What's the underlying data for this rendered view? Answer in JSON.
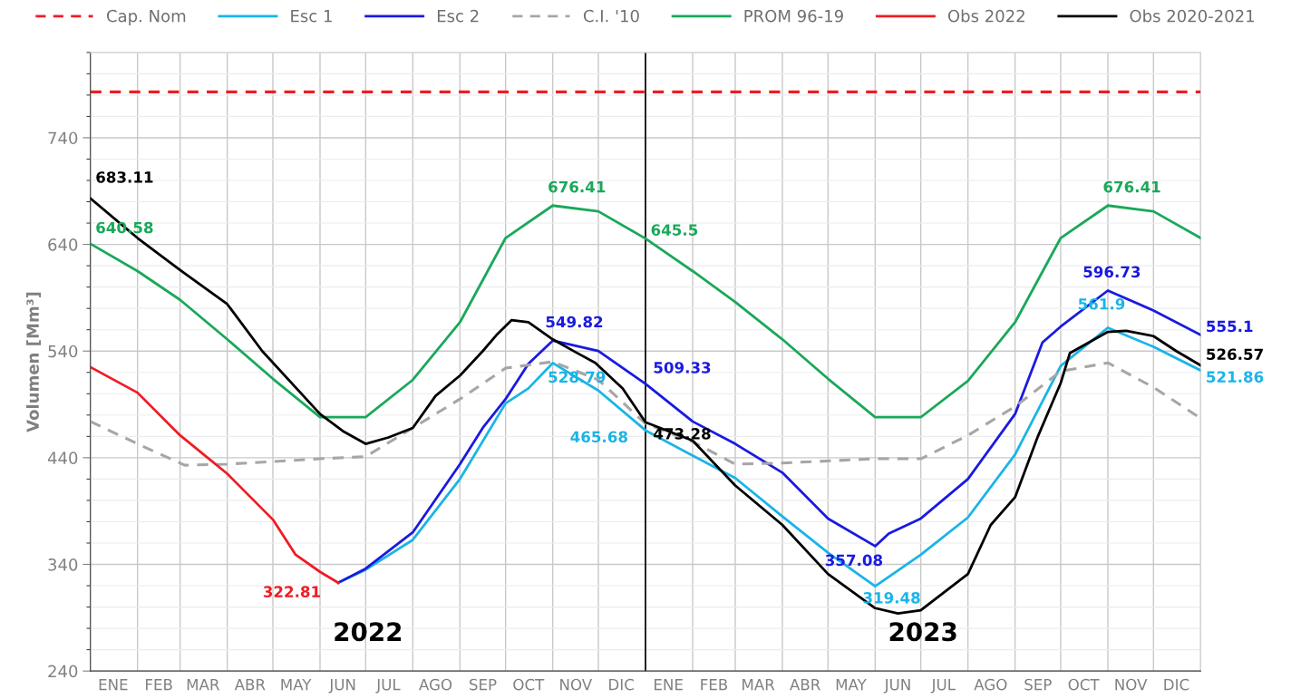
{
  "chart_data": {
    "type": "line",
    "ylabel": "Volumen [Mm³]",
    "xlim": [
      "2022-01-01",
      "2024-01-01"
    ],
    "xticks": [
      {
        "value": "2022-01-16",
        "label": "ENE"
      },
      {
        "value": "2022-02-15",
        "label": "FEB"
      },
      {
        "value": "2022-03-16",
        "label": "MAR"
      },
      {
        "value": "2022-04-16",
        "label": "ABR"
      },
      {
        "value": "2022-05-16",
        "label": "MAY"
      },
      {
        "value": "2022-06-16",
        "label": "JUN"
      },
      {
        "value": "2022-07-16",
        "label": "JUL"
      },
      {
        "value": "2022-08-16",
        "label": "AGO"
      },
      {
        "value": "2022-09-16",
        "label": "SEP"
      },
      {
        "value": "2022-10-16",
        "label": "OCT"
      },
      {
        "value": "2022-11-16",
        "label": "NOV"
      },
      {
        "value": "2022-12-16",
        "label": "DIC"
      },
      {
        "value": "2023-01-16",
        "label": "ENE"
      },
      {
        "value": "2023-02-15",
        "label": "FEB"
      },
      {
        "value": "2023-03-16",
        "label": "MAR"
      },
      {
        "value": "2023-04-16",
        "label": "ABR"
      },
      {
        "value": "2023-05-16",
        "label": "MAY"
      },
      {
        "value": "2023-06-16",
        "label": "JUN"
      },
      {
        "value": "2023-07-16",
        "label": "JUL"
      },
      {
        "value": "2023-08-16",
        "label": "AGO"
      },
      {
        "value": "2023-09-16",
        "label": "SEP"
      },
      {
        "value": "2023-10-16",
        "label": "OCT"
      },
      {
        "value": "2023-11-16",
        "label": "NOV"
      },
      {
        "value": "2023-12-16",
        "label": "DIC"
      }
    ],
    "ylim": [
      240,
      820
    ],
    "yticks": [
      240,
      340,
      440,
      540,
      640,
      740
    ],
    "grid": true,
    "legend": "top",
    "marker": "none",
    "ref_lines": [
      {
        "axis": "x",
        "value": "2023-01-01",
        "color": "#000000"
      }
    ],
    "series": [
      {
        "name": "Cap. Nom",
        "color": "#ee1c25",
        "line_style": "dashed",
        "x": [
          "2022-01-01",
          "2024-01-01"
        ],
        "values": [
          783,
          783
        ]
      },
      {
        "name": "Esc 1",
        "color": "#1ab4e8",
        "line_style": "solid",
        "x": [
          "2022-06-13",
          "2022-07-01",
          "2022-08-01",
          "2022-09-01",
          "2022-10-01",
          "2022-10-16",
          "2022-11-01",
          "2022-12-01",
          "2023-01-01",
          "2023-02-01",
          "2023-03-01",
          "2023-04-01",
          "2023-05-01",
          "2023-06-01",
          "2023-07-01",
          "2023-08-01",
          "2023-09-01",
          "2023-10-01",
          "2023-11-01",
          "2023-12-01",
          "2024-01-01"
        ],
        "values": [
          322.81,
          335,
          363,
          420,
          491,
          505,
          528.79,
          503,
          465.68,
          442,
          421,
          385,
          351,
          319.48,
          349,
          384,
          443,
          526,
          561.9,
          544,
          521.86
        ]
      },
      {
        "name": "Esc 2",
        "color": "#1a1ae0",
        "line_style": "solid",
        "x": [
          "2022-06-13",
          "2022-07-01",
          "2022-08-01",
          "2022-09-01",
          "2022-09-16",
          "2022-10-01",
          "2022-10-16",
          "2022-11-01",
          "2022-12-01",
          "2023-01-01",
          "2023-02-01",
          "2023-03-01",
          "2023-04-01",
          "2023-05-01",
          "2023-06-01",
          "2023-06-10",
          "2023-07-01",
          "2023-08-01",
          "2023-09-01",
          "2023-09-19",
          "2023-10-01",
          "2023-11-01",
          "2023-12-01",
          "2024-01-01"
        ],
        "values": [
          322.81,
          336,
          370,
          434,
          468,
          495,
          528,
          549.82,
          540,
          509.33,
          474,
          453,
          426,
          383,
          357.08,
          369,
          383,
          420,
          481,
          548,
          563,
          596.73,
          578,
          555.1
        ]
      },
      {
        "name": "C.I. '10",
        "color": "#a6a6a6",
        "line_style": "dashed",
        "x": [
          "2022-01-01",
          "2022-02-01",
          "2022-03-04",
          "2022-04-01",
          "2022-06-01",
          "2022-07-01",
          "2022-08-01",
          "2022-09-01",
          "2022-10-01",
          "2022-11-01",
          "2022-12-01",
          "2023-01-01",
          "2023-02-01",
          "2023-03-01",
          "2023-04-01",
          "2023-06-01",
          "2023-07-01",
          "2023-08-01",
          "2023-09-01",
          "2023-10-01",
          "2023-11-01",
          "2023-12-01",
          "2024-01-01"
        ],
        "values": [
          474,
          453,
          433,
          434,
          439,
          441,
          468,
          495,
          524,
          530,
          513,
          472,
          455,
          434,
          435,
          439,
          439,
          461,
          488,
          521,
          529,
          506,
          477
        ]
      },
      {
        "name": "PROM 96-19",
        "color": "#1aa85a",
        "line_style": "solid",
        "x": [
          "2022-01-01",
          "2022-02-01",
          "2022-03-01",
          "2022-04-01",
          "2022-05-01",
          "2022-06-01",
          "2022-07-01",
          "2022-08-01",
          "2022-09-01",
          "2022-10-01",
          "2022-11-01",
          "2022-12-01",
          "2023-01-01",
          "2023-02-01",
          "2023-03-01",
          "2023-04-01",
          "2023-05-01",
          "2023-06-01",
          "2023-07-01",
          "2023-08-01",
          "2023-09-01",
          "2023-10-01",
          "2023-11-01",
          "2023-12-01",
          "2024-01-01"
        ],
        "values": [
          640.58,
          615,
          588,
          551,
          514,
          478,
          478,
          513,
          567,
          646,
          676.41,
          671,
          645.5,
          615,
          586,
          551,
          514,
          478,
          478,
          512,
          567,
          646,
          676.41,
          671,
          646
        ]
      },
      {
        "name": "Obs 2022",
        "color": "#ee1c25",
        "line_style": "solid",
        "x": [
          "2022-01-01",
          "2022-02-01",
          "2022-03-01",
          "2022-04-01",
          "2022-05-01",
          "2022-05-16",
          "2022-06-01",
          "2022-06-13"
        ],
        "values": [
          525,
          501,
          461,
          425,
          382,
          349,
          333,
          322.81
        ]
      },
      {
        "name": "Obs 2020-2021",
        "color": "#000000",
        "line_style": "solid",
        "x": [
          "2022-01-01",
          "2022-02-01",
          "2022-03-01",
          "2022-04-01",
          "2022-04-24",
          "2022-06-01",
          "2022-06-16",
          "2022-07-01",
          "2022-07-16",
          "2022-08-01",
          "2022-08-16",
          "2022-09-01",
          "2022-09-16",
          "2022-09-25",
          "2022-10-05",
          "2022-10-16",
          "2022-11-01",
          "2022-11-16",
          "2022-11-29",
          "2022-12-17",
          "2023-01-01",
          "2023-02-01",
          "2023-03-01",
          "2023-04-01",
          "2023-05-01",
          "2023-06-01",
          "2023-06-16",
          "2023-07-01",
          "2023-08-01",
          "2023-08-16",
          "2023-09-01",
          "2023-09-16",
          "2023-10-01",
          "2023-10-07",
          "2023-11-01",
          "2023-11-13",
          "2023-12-01",
          "2023-12-16",
          "2024-01-01"
        ],
        "values": [
          683.11,
          646,
          616,
          584,
          540,
          481,
          465,
          453,
          459,
          468,
          498,
          517,
          540,
          555,
          569,
          567,
          551,
          539,
          529,
          505,
          473.28,
          456,
          414,
          377,
          331,
          299,
          294,
          297,
          331,
          377,
          403,
          460,
          510,
          538,
          558,
          559,
          554,
          540,
          526.57
        ]
      }
    ],
    "annotations": [
      {
        "text": "683.11",
        "x": "2022-01-01",
        "y": 683.11
      },
      {
        "text": "640.58",
        "x": "2022-01-01",
        "y": 640.58
      },
      {
        "text": "676.41",
        "x": "2022-11-01",
        "y": 676.41
      },
      {
        "text": "645.5",
        "x": "2023-01-01",
        "y": 645.5
      },
      {
        "text": "676.41",
        "x": "2023-11-01",
        "y": 676.41
      },
      {
        "text": "549.82",
        "x": "2022-11-01",
        "y": 549.82
      },
      {
        "text": "528.79",
        "x": "2022-11-01",
        "y": 528.79
      },
      {
        "text": "465.68",
        "x": "2023-01-01",
        "y": 465.68
      },
      {
        "text": "509.33",
        "x": "2023-01-01",
        "y": 509.33
      },
      {
        "text": "473.28",
        "x": "2023-01-01",
        "y": 473.28
      },
      {
        "text": "322.81",
        "x": "2022-06-13",
        "y": 322.81
      },
      {
        "text": "357.08",
        "x": "2023-06-01",
        "y": 357.08
      },
      {
        "text": "319.48",
        "x": "2023-06-01",
        "y": 319.48
      },
      {
        "text": "596.73",
        "x": "2023-11-01",
        "y": 596.73
      },
      {
        "text": "561.9",
        "x": "2023-11-01",
        "y": 561.9
      },
      {
        "text": "555.1",
        "x": "2024-01-01",
        "y": 555.1
      },
      {
        "text": "526.57",
        "x": "2024-01-01",
        "y": 526.57
      },
      {
        "text": "521.86",
        "x": "2024-01-01",
        "y": 521.86
      },
      "2022",
      "2023"
    ]
  }
}
